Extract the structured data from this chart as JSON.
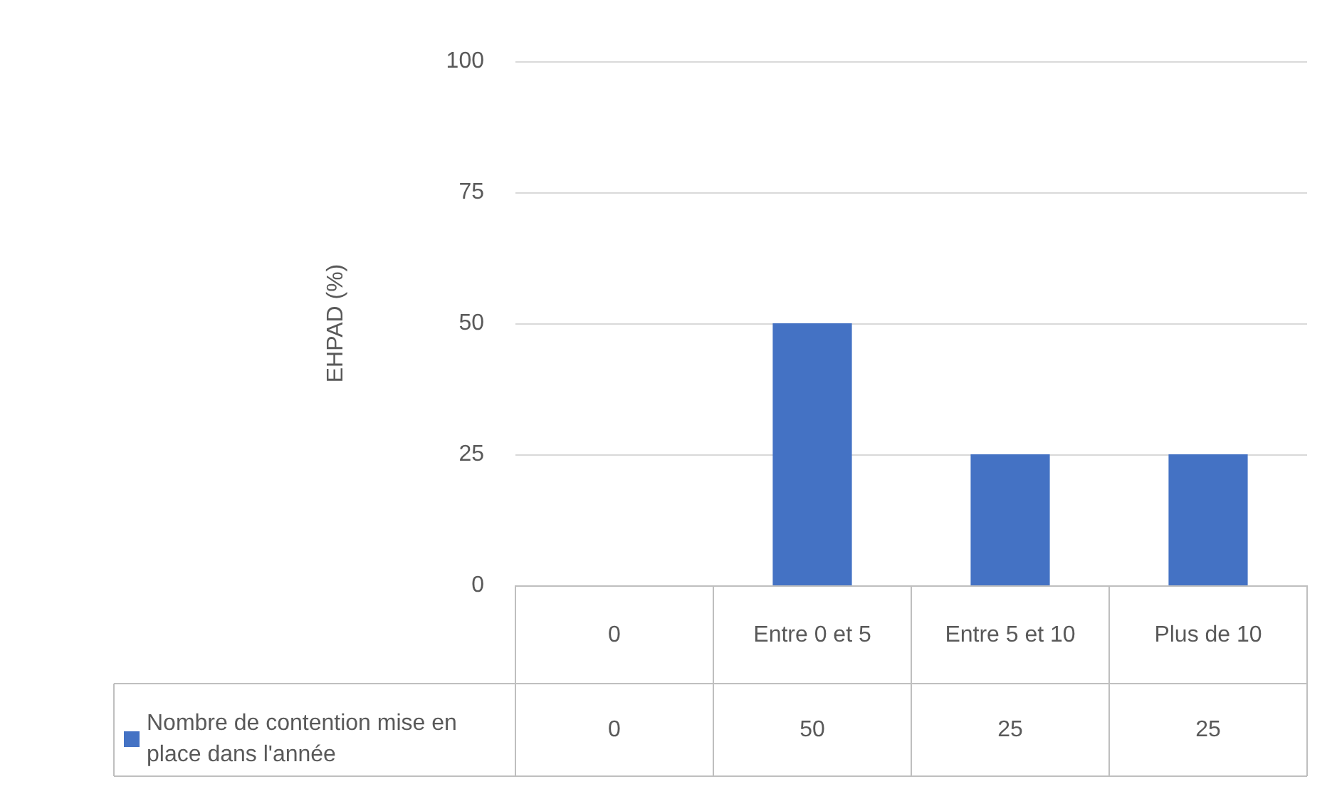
{
  "chart_data": {
    "type": "bar",
    "ylabel": "EHPAD (%)",
    "categories": [
      "0",
      "Entre 0 et 5",
      "Entre 5 et 10",
      "Plus de 10"
    ],
    "series": [
      {
        "name": "Nombre de contention mise en place dans l'année",
        "color": "#4472c4",
        "values": [
          0,
          50,
          25,
          25
        ]
      }
    ],
    "ylim": [
      0,
      100
    ],
    "yticks": [
      0,
      25,
      50,
      75,
      100
    ],
    "grid": "y",
    "legend": "bottom",
    "data_labels": true
  }
}
